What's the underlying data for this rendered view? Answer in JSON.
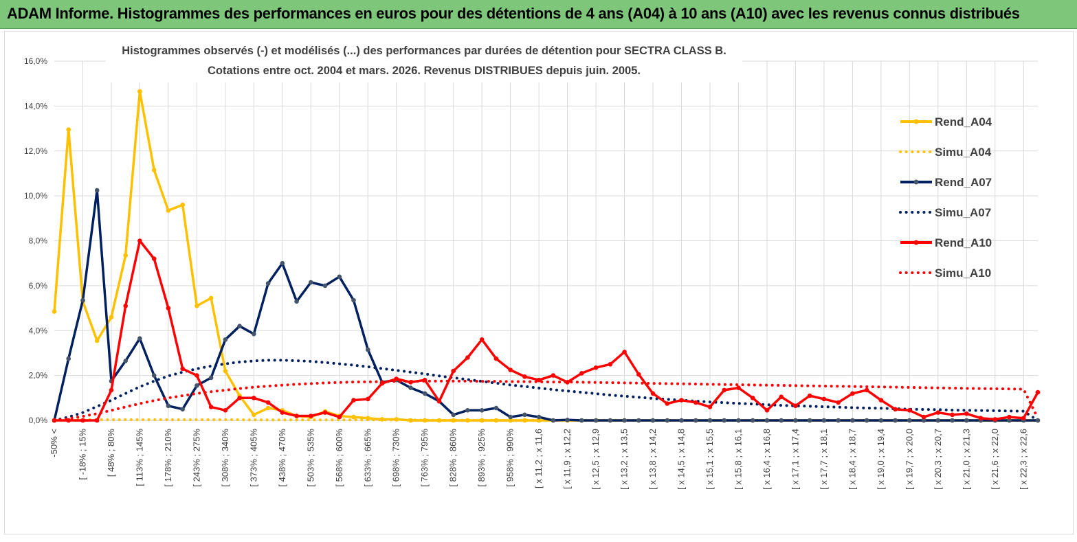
{
  "header": {
    "title": "ADAM Informe. Histogrammes des performances en euros pour des détentions de 4 ans (A04) à 10 ans (A10) avec les revenus connus distribués"
  },
  "colors": {
    "banner": "#7ec77a",
    "A04": "#ffc000",
    "A07": "#002060",
    "A10": "#ff0000",
    "grid": "#d9d9d9",
    "text": "#404040"
  },
  "chart_data": {
    "type": "line",
    "title_lines": [
      "Histogrammes observés (-) et modélisés (...) des performances par durées de détention pour SECTRA CLASS B.",
      "Cotations entre oct. 2004 et mars. 2026. Revenus DISTRIBUES depuis juin. 2005."
    ],
    "ylim": [
      0,
      16
    ],
    "y_ticks": [
      "0,0%",
      "2,0%",
      "4,0%",
      "6,0%",
      "8,0%",
      "10,0%",
      "12,0%",
      "14,0%",
      "16,0%"
    ],
    "x_tick_labels": [
      "-50% <",
      "[ -18% ; 15%",
      "[ 48% ; 80%",
      "[ 113% ; 145%",
      "[ 178% ; 210%",
      "[ 243% ; 275%",
      "[ 308% ; 340%",
      "[ 373% ; 405%",
      "[ 438% ; 470%",
      "[ 503% ; 535%",
      "[ 568% ; 600%",
      "[ 633% ; 665%",
      "[ 698% ; 730%",
      "[ 763% ; 795%",
      "[ 828% ; 860%",
      "[ 893% ; 925%",
      "[ 958% ; 990%",
      "[ x 11,2 ; x 11,6",
      "[ x 11,9 ; x 12,2",
      "[ x 12,5 ; x 12,9",
      "[ x 13,2 ; x 13,5",
      "[ x 13,8 ; x 14,2",
      "[ x 14,5 ; x 14,8",
      "[ x 15,1 ; x 15,5",
      "[ x 15,8 ; x 16,1",
      "[ x 16,4 ; x 16,8",
      "[ x 17,1 ; x 17,4",
      "[ x 17,7 ; x 18,1",
      "[ x 18,4 ; x 18,7",
      "[ x 19,0 ; x 19,4",
      "[ x 19,7 ; x 20,0",
      "[ x 20,3 ; x 20,7",
      "[ x 21,0 ; x 21,3",
      "[ x 21,6 ; x 22,0",
      "[ x 22,3 ; x 22,6"
    ],
    "legend": [
      "Rend_A04",
      "Simu_A04",
      "Rend_A07",
      "Simu_A07",
      "Rend_A10",
      "Simu_A10"
    ],
    "series": [
      {
        "name": "Rend_A04",
        "style": "solid",
        "color": "#ffc000",
        "values": [
          4.85,
          12.95,
          5.3,
          3.55,
          4.6,
          7.35,
          14.65,
          11.15,
          9.35,
          9.6,
          5.1,
          5.45,
          2.2,
          1.1,
          0.25,
          0.55,
          0.45,
          0.2,
          0.15,
          0.4,
          0.2,
          0.15,
          0.1,
          0.05,
          0.05,
          0.0,
          0.0,
          0.0,
          0.0,
          0.0,
          0.0,
          0.0,
          0.0,
          0.0,
          0.0,
          0.0,
          0.0,
          0.0,
          0.0,
          0.0,
          0.0,
          0.0,
          0.0,
          0.0,
          0.0,
          0.0,
          0.0,
          0.0,
          0.0,
          0.0,
          0.0,
          0.0,
          0.0,
          0.0,
          0.0,
          0.0,
          0.0,
          0.0,
          0.0,
          0.0,
          0.0,
          0.0,
          0.0,
          0.0,
          0.0,
          0.0,
          0.0,
          0.0,
          0.0,
          0.0
        ]
      },
      {
        "name": "Simu_A04",
        "style": "dotted",
        "color": "#ffc000",
        "values": [
          0.0,
          0.03,
          0.03,
          0.03,
          0.03,
          0.03,
          0.03,
          0.03,
          0.03,
          0.03,
          0.03,
          0.03,
          0.03,
          0.03,
          0.02,
          0.02,
          0.02,
          0.02,
          0.02,
          0.02,
          0.02,
          0.02,
          0.02,
          0.02,
          0.02,
          0.02,
          0.01,
          0.01,
          0.01,
          0.01,
          0.01,
          0.01,
          0.01,
          0.01,
          0.01,
          0.01,
          0.01,
          0.01,
          0.01,
          0.01,
          0.01,
          0.0,
          0.0,
          0.0,
          0.0,
          0.0,
          0.0,
          0.0,
          0.0,
          0.0,
          0.0,
          0.0,
          0.0,
          0.0,
          0.0,
          0.0,
          0.0,
          0.0,
          0.0,
          0.0,
          0.0,
          0.0,
          0.0,
          0.0,
          0.0,
          0.0,
          0.0,
          0.0,
          0.0,
          0.0
        ]
      },
      {
        "name": "Rend_A07",
        "style": "solid",
        "color": "#002060",
        "values": [
          0.0,
          2.75,
          5.35,
          10.25,
          1.75,
          2.65,
          3.65,
          2.0,
          0.65,
          0.5,
          1.55,
          1.9,
          3.6,
          4.2,
          3.85,
          6.1,
          7.0,
          5.3,
          6.15,
          6.0,
          6.4,
          5.35,
          3.15,
          1.7,
          1.8,
          1.45,
          1.2,
          0.85,
          0.25,
          0.45,
          0.45,
          0.55,
          0.15,
          0.25,
          0.15,
          0.0,
          0.02,
          0.0,
          0.0,
          0.0,
          0.0,
          0.0,
          0.0,
          0.0,
          0.0,
          0.0,
          0.0,
          0.0,
          0.0,
          0.0,
          0.0,
          0.0,
          0.0,
          0.0,
          0.0,
          0.0,
          0.0,
          0.0,
          0.0,
          0.0,
          0.0,
          0.0,
          0.0,
          0.0,
          0.0,
          0.0,
          0.0,
          0.0,
          0.0,
          0.0
        ]
      },
      {
        "name": "Simu_A07",
        "style": "dotted",
        "color": "#002060",
        "values": [
          0.0,
          0.15,
          0.35,
          0.62,
          0.9,
          1.2,
          1.5,
          1.75,
          1.98,
          2.15,
          2.3,
          2.42,
          2.52,
          2.6,
          2.65,
          2.68,
          2.68,
          2.66,
          2.63,
          2.58,
          2.52,
          2.46,
          2.39,
          2.31,
          2.23,
          2.15,
          2.07,
          1.98,
          1.9,
          1.82,
          1.74,
          1.66,
          1.58,
          1.51,
          1.44,
          1.37,
          1.31,
          1.25,
          1.19,
          1.13,
          1.08,
          1.03,
          0.98,
          0.94,
          0.9,
          0.86,
          0.82,
          0.79,
          0.76,
          0.73,
          0.7,
          0.67,
          0.65,
          0.63,
          0.61,
          0.59,
          0.57,
          0.55,
          0.54,
          0.52,
          0.5,
          0.49,
          0.48,
          0.46,
          0.45,
          0.44,
          0.43,
          0.42,
          0.41,
          0.0
        ]
      },
      {
        "name": "Rend_A10",
        "style": "solid",
        "color": "#ff0000",
        "values": [
          0.0,
          0.0,
          0.0,
          0.0,
          1.35,
          5.1,
          8.0,
          7.2,
          5.0,
          2.3,
          2.0,
          0.6,
          0.45,
          1.0,
          1.0,
          0.8,
          0.35,
          0.2,
          0.2,
          0.35,
          0.15,
          0.9,
          0.95,
          1.65,
          1.85,
          1.7,
          1.8,
          0.85,
          2.2,
          2.8,
          3.6,
          2.75,
          2.25,
          1.95,
          1.8,
          2.0,
          1.7,
          2.1,
          2.35,
          2.5,
          3.05,
          2.05,
          1.2,
          0.75,
          0.9,
          0.8,
          0.6,
          1.35,
          1.45,
          1.0,
          0.45,
          1.05,
          0.65,
          1.1,
          0.95,
          0.8,
          1.2,
          1.35,
          0.9,
          0.5,
          0.45,
          0.15,
          0.35,
          0.25,
          0.3,
          0.1,
          0.05,
          0.15,
          0.1,
          1.25
        ]
      },
      {
        "name": "Simu_A10",
        "style": "dotted",
        "color": "#ff0000",
        "values": [
          0.0,
          0.08,
          0.18,
          0.3,
          0.45,
          0.6,
          0.75,
          0.88,
          1.0,
          1.1,
          1.2,
          1.28,
          1.35,
          1.42,
          1.48,
          1.53,
          1.57,
          1.61,
          1.64,
          1.67,
          1.69,
          1.71,
          1.72,
          1.73,
          1.74,
          1.74,
          1.75,
          1.75,
          1.75,
          1.75,
          1.74,
          1.74,
          1.73,
          1.73,
          1.72,
          1.71,
          1.71,
          1.7,
          1.69,
          1.68,
          1.67,
          1.66,
          1.65,
          1.64,
          1.63,
          1.62,
          1.61,
          1.6,
          1.59,
          1.58,
          1.57,
          1.56,
          1.55,
          1.54,
          1.53,
          1.52,
          1.51,
          1.5,
          1.49,
          1.48,
          1.47,
          1.46,
          1.45,
          1.44,
          1.43,
          1.42,
          1.41,
          1.4,
          1.39,
          0.1
        ]
      }
    ]
  }
}
